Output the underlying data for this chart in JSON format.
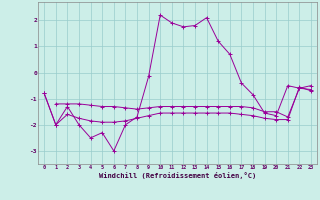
{
  "xlabel": "Windchill (Refroidissement éolien,°C)",
  "background_color": "#cceee8",
  "grid_color": "#99cccc",
  "line_color": "#990099",
  "xlim_min": -0.5,
  "xlim_max": 23.5,
  "ylim_min": -3.5,
  "ylim_max": 2.7,
  "yticks": [
    -3,
    -2,
    -1,
    0,
    1,
    2
  ],
  "xtick_labels": [
    "0",
    "1",
    "2",
    "3",
    "4",
    "5",
    "6",
    "7",
    "8",
    "9",
    "10",
    "11",
    "12",
    "13",
    "14",
    "15",
    "16",
    "17",
    "18",
    "19",
    "20",
    "21",
    "22",
    "23"
  ],
  "s1_x": [
    0,
    1,
    2,
    3,
    4,
    5,
    6,
    7,
    8,
    9,
    10,
    11,
    12,
    13,
    14,
    15,
    16,
    17,
    18,
    19,
    20,
    21,
    22,
    23
  ],
  "s1_y": [
    -0.8,
    -2.0,
    -1.3,
    -2.0,
    -2.5,
    -2.3,
    -3.0,
    -2.0,
    -1.7,
    -0.15,
    2.2,
    1.9,
    1.75,
    1.8,
    2.1,
    1.2,
    0.7,
    -0.4,
    -0.85,
    -1.55,
    -1.65,
    -0.5,
    -0.6,
    -0.65
  ],
  "s2_x": [
    1,
    2,
    3,
    4,
    5,
    6,
    7,
    8,
    9,
    10,
    11,
    12,
    13,
    14,
    15,
    16,
    17,
    18,
    19,
    20,
    21,
    22,
    23
  ],
  "s2_y": [
    -1.2,
    -1.2,
    -1.2,
    -1.25,
    -1.3,
    -1.3,
    -1.35,
    -1.4,
    -1.35,
    -1.3,
    -1.3,
    -1.3,
    -1.3,
    -1.3,
    -1.3,
    -1.3,
    -1.3,
    -1.35,
    -1.5,
    -1.5,
    -1.7,
    -0.6,
    -0.5
  ],
  "s3_x": [
    0,
    1,
    2,
    3,
    4,
    5,
    6,
    7,
    8,
    9,
    10,
    11,
    12,
    13,
    14,
    15,
    16,
    17,
    18,
    19,
    20,
    21,
    22,
    23
  ],
  "s3_y": [
    -0.8,
    -2.0,
    -1.6,
    -1.75,
    -1.85,
    -1.9,
    -1.9,
    -1.85,
    -1.75,
    -1.65,
    -1.55,
    -1.55,
    -1.55,
    -1.55,
    -1.55,
    -1.55,
    -1.55,
    -1.6,
    -1.65,
    -1.75,
    -1.8,
    -1.8,
    -0.55,
    -0.7
  ]
}
